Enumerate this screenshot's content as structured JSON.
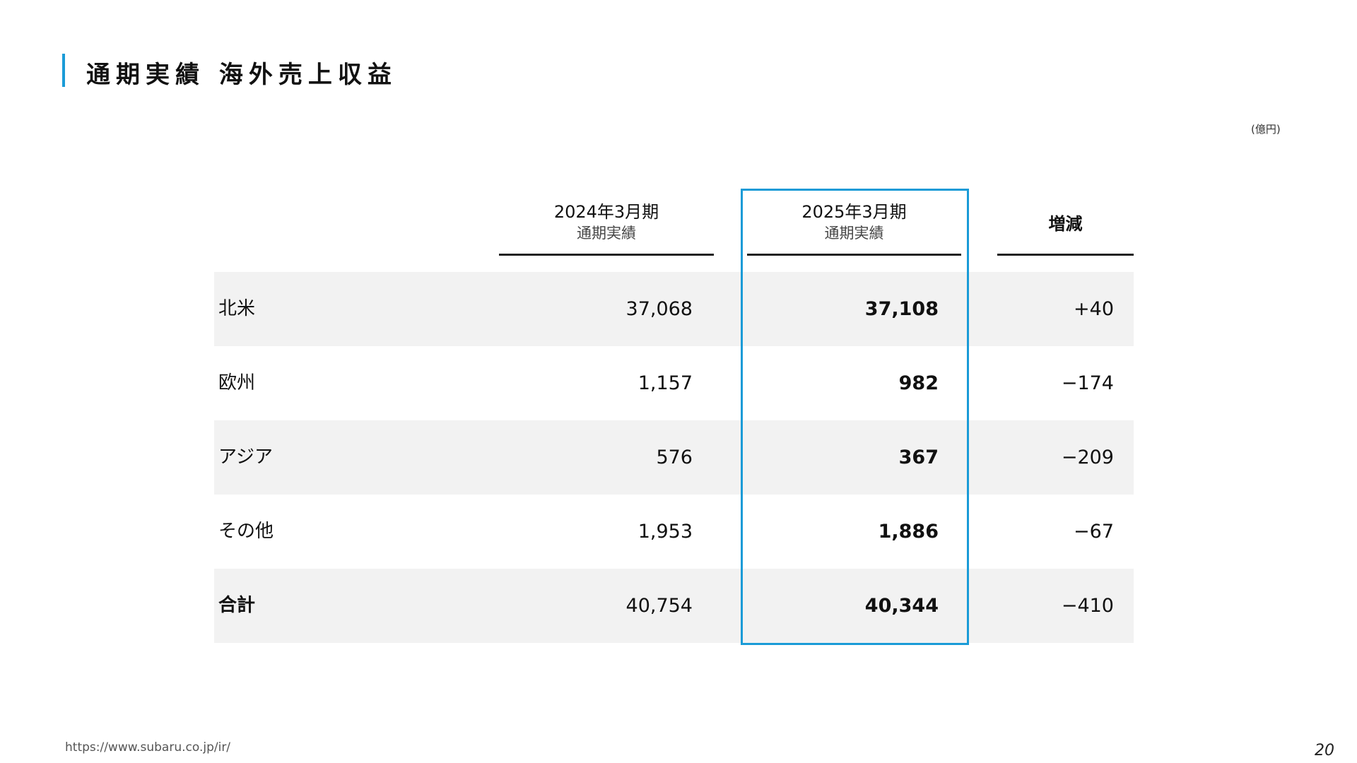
{
  "title": "通期実績 海外売上収益",
  "unit": "(億円)",
  "table": {
    "columns": [
      {
        "period": "2024年3月期",
        "sub": "通期実績"
      },
      {
        "period": "2025年3月期",
        "sub": "通期実績"
      },
      {
        "period": "増減",
        "sub": ""
      }
    ],
    "rows": [
      {
        "label": "北米",
        "fy2024": "37,068",
        "fy2025": "37,108",
        "change": "+40"
      },
      {
        "label": "欧州",
        "fy2024": "1,157",
        "fy2025": "982",
        "change": "−174"
      },
      {
        "label": "アジア",
        "fy2024": "576",
        "fy2025": "367",
        "change": "−209"
      },
      {
        "label": "その他",
        "fy2024": "1,953",
        "fy2025": "1,886",
        "change": "−67"
      },
      {
        "label": "合計",
        "fy2024": "40,754",
        "fy2025": "40,344",
        "change": "−410"
      }
    ],
    "highlight_color": "#1a9bd7"
  },
  "footer": {
    "url": "https://www.subaru.co.jp/ir/",
    "page": "20"
  }
}
